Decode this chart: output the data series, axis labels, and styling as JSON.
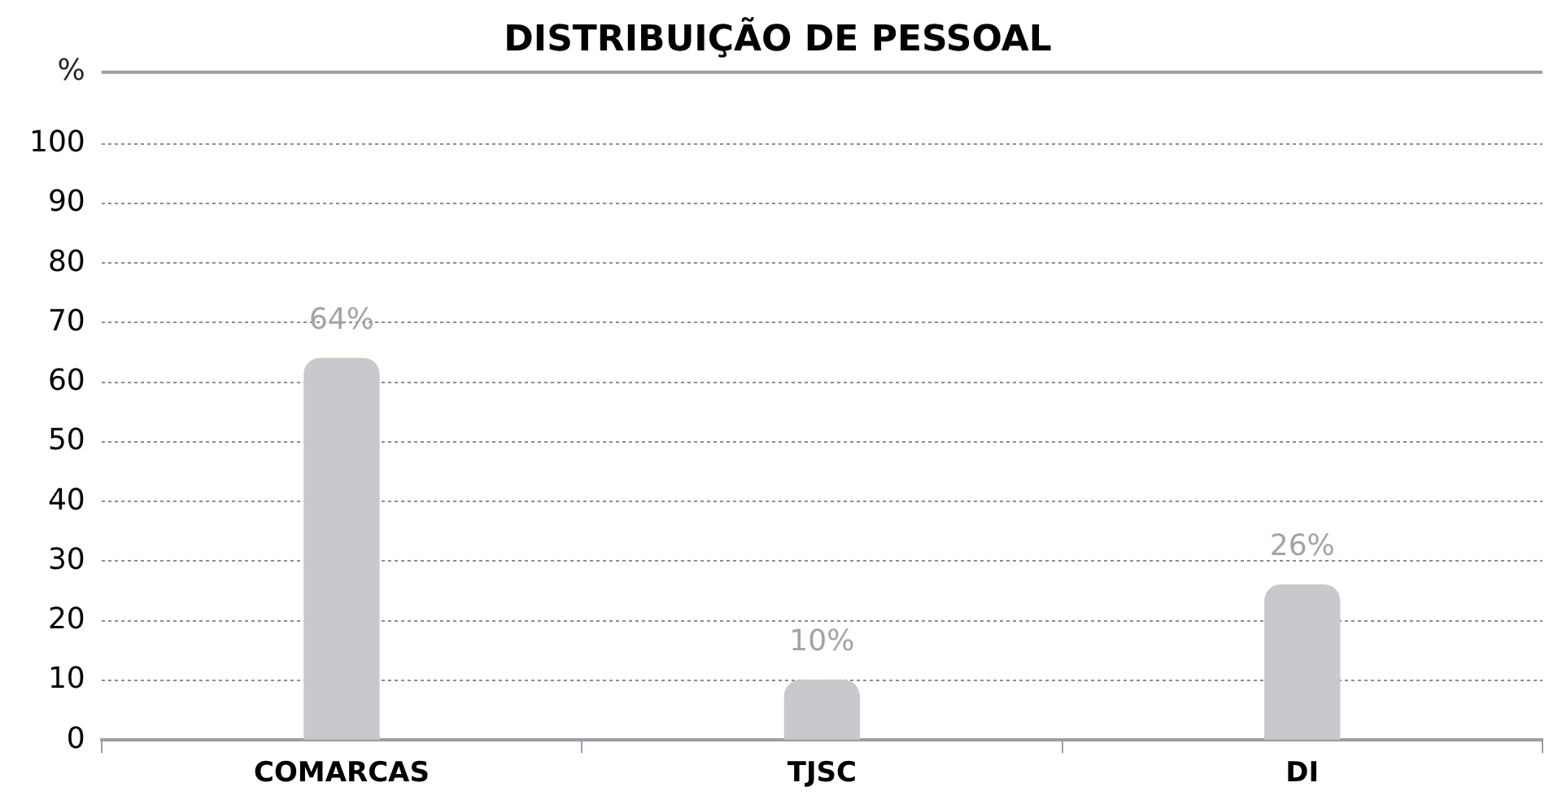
{
  "chart_data": {
    "type": "bar",
    "title": "DISTRIBUIÇÃO DE PESSOAL",
    "ylabel": "%",
    "categories": [
      "COMARCAS",
      "TJSC",
      "DI"
    ],
    "values": [
      64,
      10,
      26
    ],
    "color": "#c8c9cc",
    "value_labels": [
      "64%",
      "10%",
      "26%"
    ],
    "ylim": [
      0,
      112
    ],
    "yticks": [
      0,
      10,
      20,
      30,
      40,
      50,
      60,
      70,
      80,
      90,
      100
    ],
    "grid": "y",
    "legend": false
  }
}
